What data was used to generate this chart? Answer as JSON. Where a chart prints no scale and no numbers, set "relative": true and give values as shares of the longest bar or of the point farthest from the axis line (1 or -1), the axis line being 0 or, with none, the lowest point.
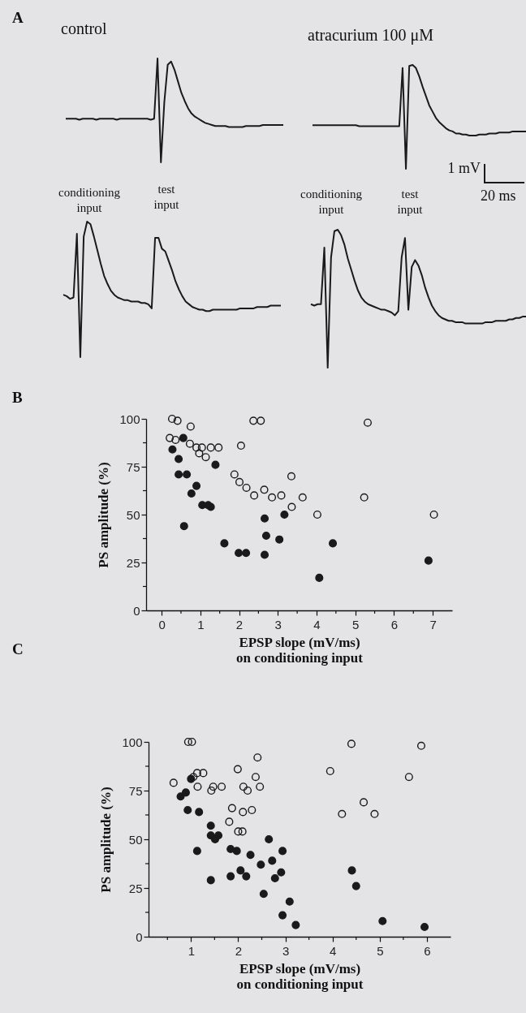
{
  "chart_data": [
    {
      "type": "line",
      "relative": true,
      "title": "control",
      "annotations": [
        "A"
      ],
      "categories": [
        null,
        null,
        null,
        null,
        null,
        null,
        null,
        null,
        null,
        null,
        null,
        null,
        null,
        null,
        null,
        null,
        null,
        null,
        null,
        null,
        null,
        null,
        null,
        null,
        null,
        null,
        null,
        null,
        null,
        null,
        null,
        null,
        null,
        null,
        null,
        null,
        null,
        null,
        null,
        null,
        null,
        null,
        null,
        null,
        null,
        null,
        null,
        null,
        null,
        null,
        null,
        null,
        null,
        null,
        null,
        null,
        null,
        null,
        null,
        null,
        null,
        null,
        null,
        null,
        null
      ],
      "series": [
        {
          "color": "#1a1a1a",
          "values": [
            0.42,
            0.42,
            0.42,
            0.42,
            0.41,
            0.42,
            0.42,
            0.42,
            0.42,
            0.41,
            0.42,
            0.42,
            0.42,
            0.42,
            0.42,
            0.41,
            0.42,
            0.42,
            0.42,
            0.42,
            0.42,
            0.42,
            0.42,
            0.42,
            0.42,
            0.41,
            0.42,
            1.0,
            0,
            0.58,
            0.94,
            0.97,
            0.89,
            0.78,
            0.67,
            0.59,
            0.52,
            0.47,
            0.44,
            0.42,
            0.4,
            0.38,
            0.37,
            0.36,
            0.35,
            0.35,
            0.35,
            0.35,
            0.34,
            0.34,
            0.34,
            0.34,
            0.34,
            0.35,
            0.35,
            0.35,
            0.35,
            0.35,
            0.36,
            0.36,
            0.36,
            0.36,
            0.36,
            0.36,
            0.36
          ]
        }
      ]
    },
    {
      "type": "line",
      "relative": true,
      "title": "atracurium 100 μM",
      "annotations": [
        "1 mV",
        "20 ms"
      ],
      "categories": [
        null,
        null,
        null,
        null,
        null,
        null,
        null,
        null,
        null,
        null,
        null,
        null,
        null,
        null,
        null,
        null,
        null,
        null,
        null,
        null,
        null,
        null,
        null,
        null,
        null,
        null,
        null,
        null,
        null,
        null,
        null,
        null,
        null,
        null,
        null,
        null,
        null,
        null,
        null,
        null,
        null,
        null,
        null,
        null,
        null,
        null,
        null,
        null,
        null,
        null,
        null,
        null,
        null,
        null,
        null,
        null,
        null,
        null,
        null,
        null,
        null,
        null,
        null,
        null,
        null
      ],
      "series": [
        {
          "color": "#1a1a1a",
          "values": [
            0.42,
            0.42,
            0.42,
            0.42,
            0.42,
            0.42,
            0.42,
            0.42,
            0.42,
            0.42,
            0.42,
            0.42,
            0.42,
            0.42,
            0.41,
            0.41,
            0.41,
            0.41,
            0.41,
            0.41,
            0.41,
            0.41,
            0.41,
            0.41,
            0.41,
            0.41,
            0.41,
            0.97,
            0,
            0.99,
            1.0,
            0.97,
            0.89,
            0.79,
            0.7,
            0.61,
            0.55,
            0.49,
            0.45,
            0.42,
            0.39,
            0.37,
            0.36,
            0.34,
            0.34,
            0.33,
            0.33,
            0.32,
            0.32,
            0.32,
            0.33,
            0.33,
            0.33,
            0.34,
            0.34,
            0.34,
            0.35,
            0.35,
            0.35,
            0.35,
            0.36,
            0.36,
            0.36,
            0.36,
            0.36
          ]
        }
      ]
    },
    {
      "type": "line",
      "relative": true,
      "annotations": [
        "conditioning input",
        "test input"
      ],
      "categories": [
        null,
        null,
        null,
        null,
        null,
        null,
        null,
        null,
        null,
        null,
        null,
        null,
        null,
        null,
        null,
        null,
        null,
        null,
        null,
        null,
        null,
        null,
        null,
        null,
        null,
        null,
        null,
        null,
        null,
        null,
        null,
        null,
        null,
        null,
        null,
        null,
        null,
        null,
        null,
        null,
        null,
        null,
        null,
        null,
        null,
        null,
        null,
        null,
        null,
        null,
        null,
        null,
        null,
        null,
        null,
        null,
        null,
        null,
        null,
        null,
        null,
        null,
        null,
        null,
        null
      ],
      "series": [
        {
          "color": "#1a1a1a",
          "values": [
            0.46,
            0.45,
            0.43,
            0.44,
            0.91,
            0,
            0.89,
            1.0,
            0.98,
            0.89,
            0.79,
            0.69,
            0.6,
            0.54,
            0.49,
            0.46,
            0.44,
            0.43,
            0.42,
            0.42,
            0.41,
            0.41,
            0.41,
            0.4,
            0.4,
            0.39,
            0.36,
            0.88,
            0.88,
            0.8,
            0.78,
            0.71,
            0.64,
            0.56,
            0.5,
            0.45,
            0.41,
            0.39,
            0.37,
            0.36,
            0.35,
            0.35,
            0.34,
            0.34,
            0.35,
            0.35,
            0.35,
            0.35,
            0.35,
            0.35,
            0.35,
            0.35,
            0.36,
            0.36,
            0.36,
            0.36,
            0.36,
            0.37,
            0.37,
            0.37,
            0.37,
            0.38,
            0.38,
            0.38,
            0.38
          ]
        }
      ]
    },
    {
      "type": "line",
      "relative": true,
      "annotations": [
        "conditioning input",
        "test input"
      ],
      "categories": [
        null,
        null,
        null,
        null,
        null,
        null,
        null,
        null,
        null,
        null,
        null,
        null,
        null,
        null,
        null,
        null,
        null,
        null,
        null,
        null,
        null,
        null,
        null,
        null,
        null,
        null,
        null,
        null,
        null,
        null,
        null,
        null,
        null,
        null,
        null,
        null,
        null,
        null,
        null,
        null,
        null,
        null,
        null,
        null,
        null,
        null,
        null,
        null,
        null,
        null,
        null,
        null,
        null,
        null,
        null,
        null,
        null,
        null,
        null,
        null,
        null,
        null,
        null,
        null,
        null
      ],
      "series": [
        {
          "color": "#1a1a1a",
          "values": [
            0.46,
            0.45,
            0.46,
            0.46,
            0.87,
            0,
            0.8,
            0.99,
            1.0,
            0.96,
            0.89,
            0.79,
            0.71,
            0.63,
            0.56,
            0.51,
            0.48,
            0.46,
            0.45,
            0.44,
            0.43,
            0.42,
            0.42,
            0.41,
            0.4,
            0.38,
            0.41,
            0.8,
            0.94,
            0.42,
            0.73,
            0.78,
            0.74,
            0.67,
            0.58,
            0.51,
            0.45,
            0.41,
            0.38,
            0.36,
            0.35,
            0.34,
            0.34,
            0.33,
            0.33,
            0.33,
            0.32,
            0.32,
            0.32,
            0.32,
            0.32,
            0.32,
            0.33,
            0.33,
            0.33,
            0.34,
            0.34,
            0.34,
            0.34,
            0.35,
            0.35,
            0.36,
            0.36,
            0.37,
            0.37
          ]
        }
      ]
    },
    {
      "type": "scatter",
      "marker": "circle",
      "annotations": [
        "B"
      ],
      "xlabel": "EPSP slope (mV/ms)\non conditioning input",
      "ylabel": "PS amplitude (%)",
      "xlim": [
        -0.4,
        7.5
      ],
      "ylim": [
        0,
        100
      ],
      "xticks": [
        0,
        {
          "value": 0.5,
          "label": null
        },
        1,
        {
          "value": 1.5,
          "label": null
        },
        2,
        {
          "value": 2.5,
          "label": null
        },
        3,
        {
          "value": 3.5,
          "label": null
        },
        4,
        {
          "value": 4.5,
          "label": null
        },
        5,
        {
          "value": 5.5,
          "label": null
        },
        6,
        {
          "value": 6.5,
          "label": null
        },
        7
      ],
      "yticks": [
        0,
        {
          "value": 12.5,
          "label": null
        },
        25,
        {
          "value": 37.5,
          "label": null
        },
        50,
        {
          "value": 62.5,
          "label": null
        },
        75,
        {
          "value": 87.5,
          "label": null
        },
        100
      ],
      "series": [
        {
          "color": "#1a1a1a",
          "x": [
            0.56,
            0.28,
            0.44,
            0.44,
            0.65,
            0.9,
            0.77,
            1.05,
            1.2,
            1.27,
            0.58,
            1.39,
            1.62,
            1.99,
            2.18,
            2.66,
            2.7,
            2.66,
            3.04,
            3.17,
            4.42,
            4.07,
            6.89
          ],
          "values": [
            90,
            84,
            79,
            71,
            71,
            65,
            61,
            55,
            55,
            54,
            44,
            76,
            35,
            30,
            30,
            48,
            39,
            29,
            37,
            50,
            35,
            17,
            26
          ]
        },
        {
          "color": "#1a1a1a",
          "x": [
            0.27,
            0.41,
            0.75,
            0.21,
            0.36,
            0.73,
            0.9,
            1.04,
            0.97,
            1.14,
            1.27,
            1.47,
            2.05,
            2.37,
            2.56,
            1.88,
            2.01,
            2.19,
            2.39,
            2.65,
            2.85,
            3.09,
            3.35,
            3.36,
            3.64,
            4.02,
            5.32,
            5.23,
            7.03
          ],
          "values": [
            100,
            99,
            96,
            90,
            89,
            87,
            85,
            85,
            82,
            80,
            85,
            85,
            86,
            99,
            99,
            71,
            67,
            64,
            60,
            63,
            59,
            60,
            70,
            54,
            59,
            50,
            98,
            59,
            50
          ]
        }
      ]
    },
    {
      "type": "scatter",
      "marker": "circle",
      "annotations": [
        "C"
      ],
      "xlabel": "EPSP slope (mV/ms)\non conditioning input",
      "ylabel": "PS amplitude (%)",
      "xlim": [
        0.1,
        6.5
      ],
      "ylim": [
        0,
        100
      ],
      "xticks": [
        {
          "value": 0.5,
          "label": null
        },
        1,
        {
          "value": 1.5,
          "label": null
        },
        2,
        {
          "value": 2.5,
          "label": null
        },
        3,
        {
          "value": 3.5,
          "label": null
        },
        4,
        {
          "value": 4.5,
          "label": null
        },
        5,
        {
          "value": 5.5,
          "label": null
        },
        6
      ],
      "yticks": [
        0,
        {
          "value": 12.5,
          "label": null
        },
        25,
        {
          "value": 37.5,
          "label": null
        },
        50,
        {
          "value": 62.5,
          "label": null
        },
        75,
        {
          "value": 87.5,
          "label": null
        },
        100
      ],
      "series": [
        {
          "color": "#1a1a1a",
          "x": [
            0.78,
            0.89,
            0.93,
            1.0,
            1.17,
            1.13,
            1.42,
            1.42,
            1.51,
            1.58,
            1.42,
            1.84,
            1.97,
            1.84,
            2.05,
            2.17,
            2.26,
            2.48,
            2.54,
            2.65,
            2.72,
            2.78,
            2.94,
            2.91,
            2.94,
            3.09,
            3.22,
            4.41,
            4.5,
            5.06,
            5.95
          ],
          "values": [
            72,
            74,
            65,
            81,
            64,
            44,
            57,
            52,
            50,
            52,
            29,
            45,
            44,
            31,
            34,
            31,
            42,
            37,
            22,
            50,
            39,
            30,
            44,
            33,
            11,
            18,
            6,
            34,
            26,
            8,
            5
          ]
        },
        {
          "color": "#1a1a1a",
          "x": [
            0.63,
            0.94,
            1.02,
            1.05,
            1.13,
            1.26,
            1.14,
            1.43,
            1.47,
            1.65,
            1.87,
            1.81,
            1.99,
            2.0,
            2.09,
            2.11,
            2.2,
            2.1,
            2.29,
            2.37,
            2.46,
            2.41,
            3.95,
            4.4,
            4.2,
            4.66,
            4.89,
            5.62,
            5.88
          ],
          "values": [
            79,
            100,
            100,
            82,
            84,
            84,
            77,
            75,
            77,
            77,
            66,
            59,
            86,
            54,
            54,
            77,
            75,
            64,
            65,
            82,
            77,
            92,
            85,
            99,
            63,
            69,
            63,
            82,
            98
          ]
        }
      ]
    }
  ]
}
